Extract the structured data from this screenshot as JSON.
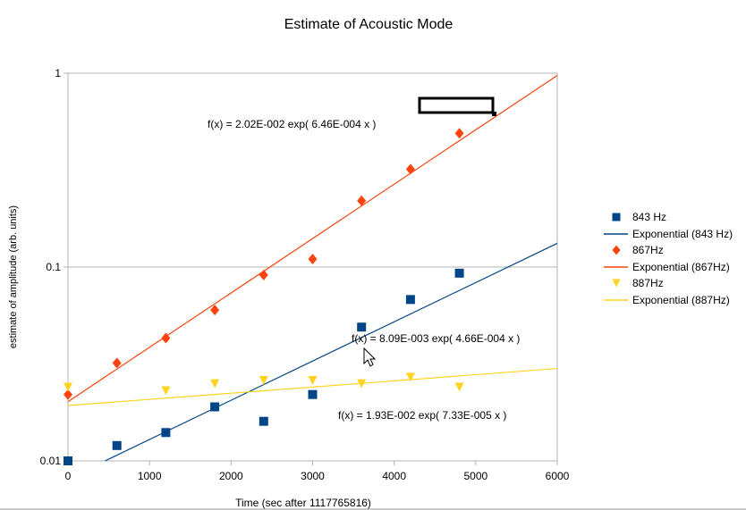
{
  "chart_data": {
    "type": "scatter",
    "title": "Estimate of Acoustic Mode",
    "xlabel": "Time (sec after 1117765816)",
    "ylabel": "estimate of amplitude (arb. units)",
    "xlim": [
      0,
      6000
    ],
    "ylim": [
      0.01,
      1
    ],
    "yscale": "log",
    "x_ticks": [
      0,
      1000,
      2000,
      3000,
      4000,
      5000,
      6000
    ],
    "y_ticks": [
      {
        "value": 0.01,
        "label": "0.01"
      },
      {
        "value": 0.1,
        "label": "0.1"
      },
      {
        "value": 1,
        "label": "1"
      }
    ],
    "grid": "horizontal",
    "legend_position": "right",
    "series": [
      {
        "name": "843 Hz",
        "marker": "square",
        "color": "#004586",
        "x": [
          0,
          600,
          1200,
          1800,
          2400,
          3000,
          3600,
          4200,
          4800
        ],
        "y": [
          0.01,
          0.012,
          0.014,
          0.019,
          0.016,
          0.022,
          0.049,
          0.068,
          0.093
        ],
        "trendline": {
          "name": "Exponential (843 Hz)",
          "a": 0.00809,
          "b": 0.000466,
          "color": "#004586"
        }
      },
      {
        "name": "867Hz",
        "marker": "diamond",
        "color": "#ff420e",
        "x": [
          0,
          600,
          1200,
          1800,
          2400,
          3000,
          3600,
          4200,
          4800
        ],
        "y": [
          0.022,
          0.032,
          0.043,
          0.06,
          0.091,
          0.11,
          0.22,
          0.32,
          0.49
        ],
        "trendline": {
          "name": "Exponential (867Hz)",
          "a": 0.0202,
          "b": 0.000646,
          "color": "#ff420e"
        }
      },
      {
        "name": "887Hz",
        "marker": "triangle-down",
        "color": "#ffd320",
        "x": [
          0,
          1200,
          1800,
          2400,
          3000,
          3600,
          4200,
          4800
        ],
        "y": [
          0.024,
          0.023,
          0.025,
          0.026,
          0.026,
          0.025,
          0.027,
          0.024
        ],
        "trendline": {
          "name": "Exponential (887Hz)",
          "a": 0.0193,
          "b": 7.33e-05,
          "color": "#ffd320"
        }
      }
    ],
    "annotations": [
      "f(x) = 2.02E-002 exp( 6.46E-004 x )",
      "f(x) = 8.09E-003 exp( 4.66E-004 x )",
      "f(x) = 1.93E-002 exp( 7.33E-005 x )"
    ]
  }
}
